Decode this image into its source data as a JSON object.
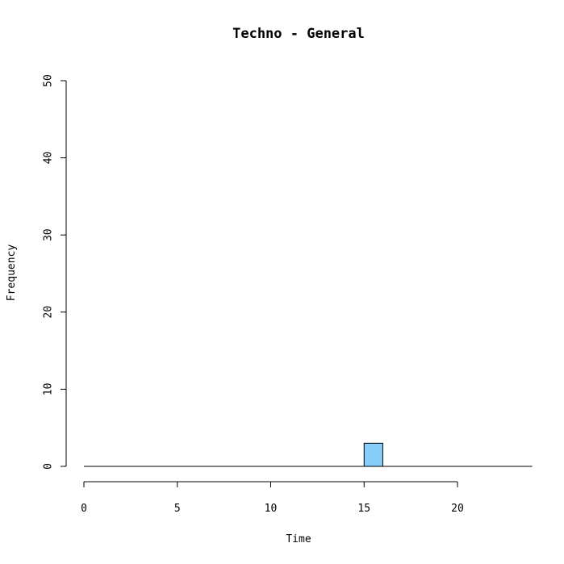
{
  "chart_data": {
    "type": "bar",
    "title": "Techno - General",
    "xlabel": "Time",
    "ylabel": "Frequency",
    "xlim": [
      0,
      24
    ],
    "ylim": [
      0,
      50
    ],
    "x_ticks": [
      0,
      5,
      10,
      15,
      20
    ],
    "y_ticks": [
      0,
      10,
      20,
      30,
      40,
      50
    ],
    "bin_width": 1,
    "bins": [
      {
        "x0": 15,
        "x1": 16,
        "count": 3
      }
    ],
    "bar_color": "#87CEFA",
    "grid": false
  }
}
